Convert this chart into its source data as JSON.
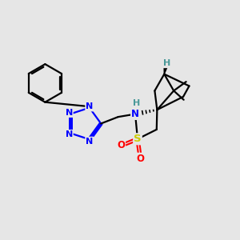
{
  "background_color": "#e6e6e6",
  "atom_colors": {
    "N": "#0000ff",
    "S": "#cccc00",
    "O": "#ff0000",
    "C": "#000000",
    "H": "#4a9999"
  },
  "bond_color": "#000000",
  "figsize": [
    3.0,
    3.0
  ],
  "dpi": 100
}
